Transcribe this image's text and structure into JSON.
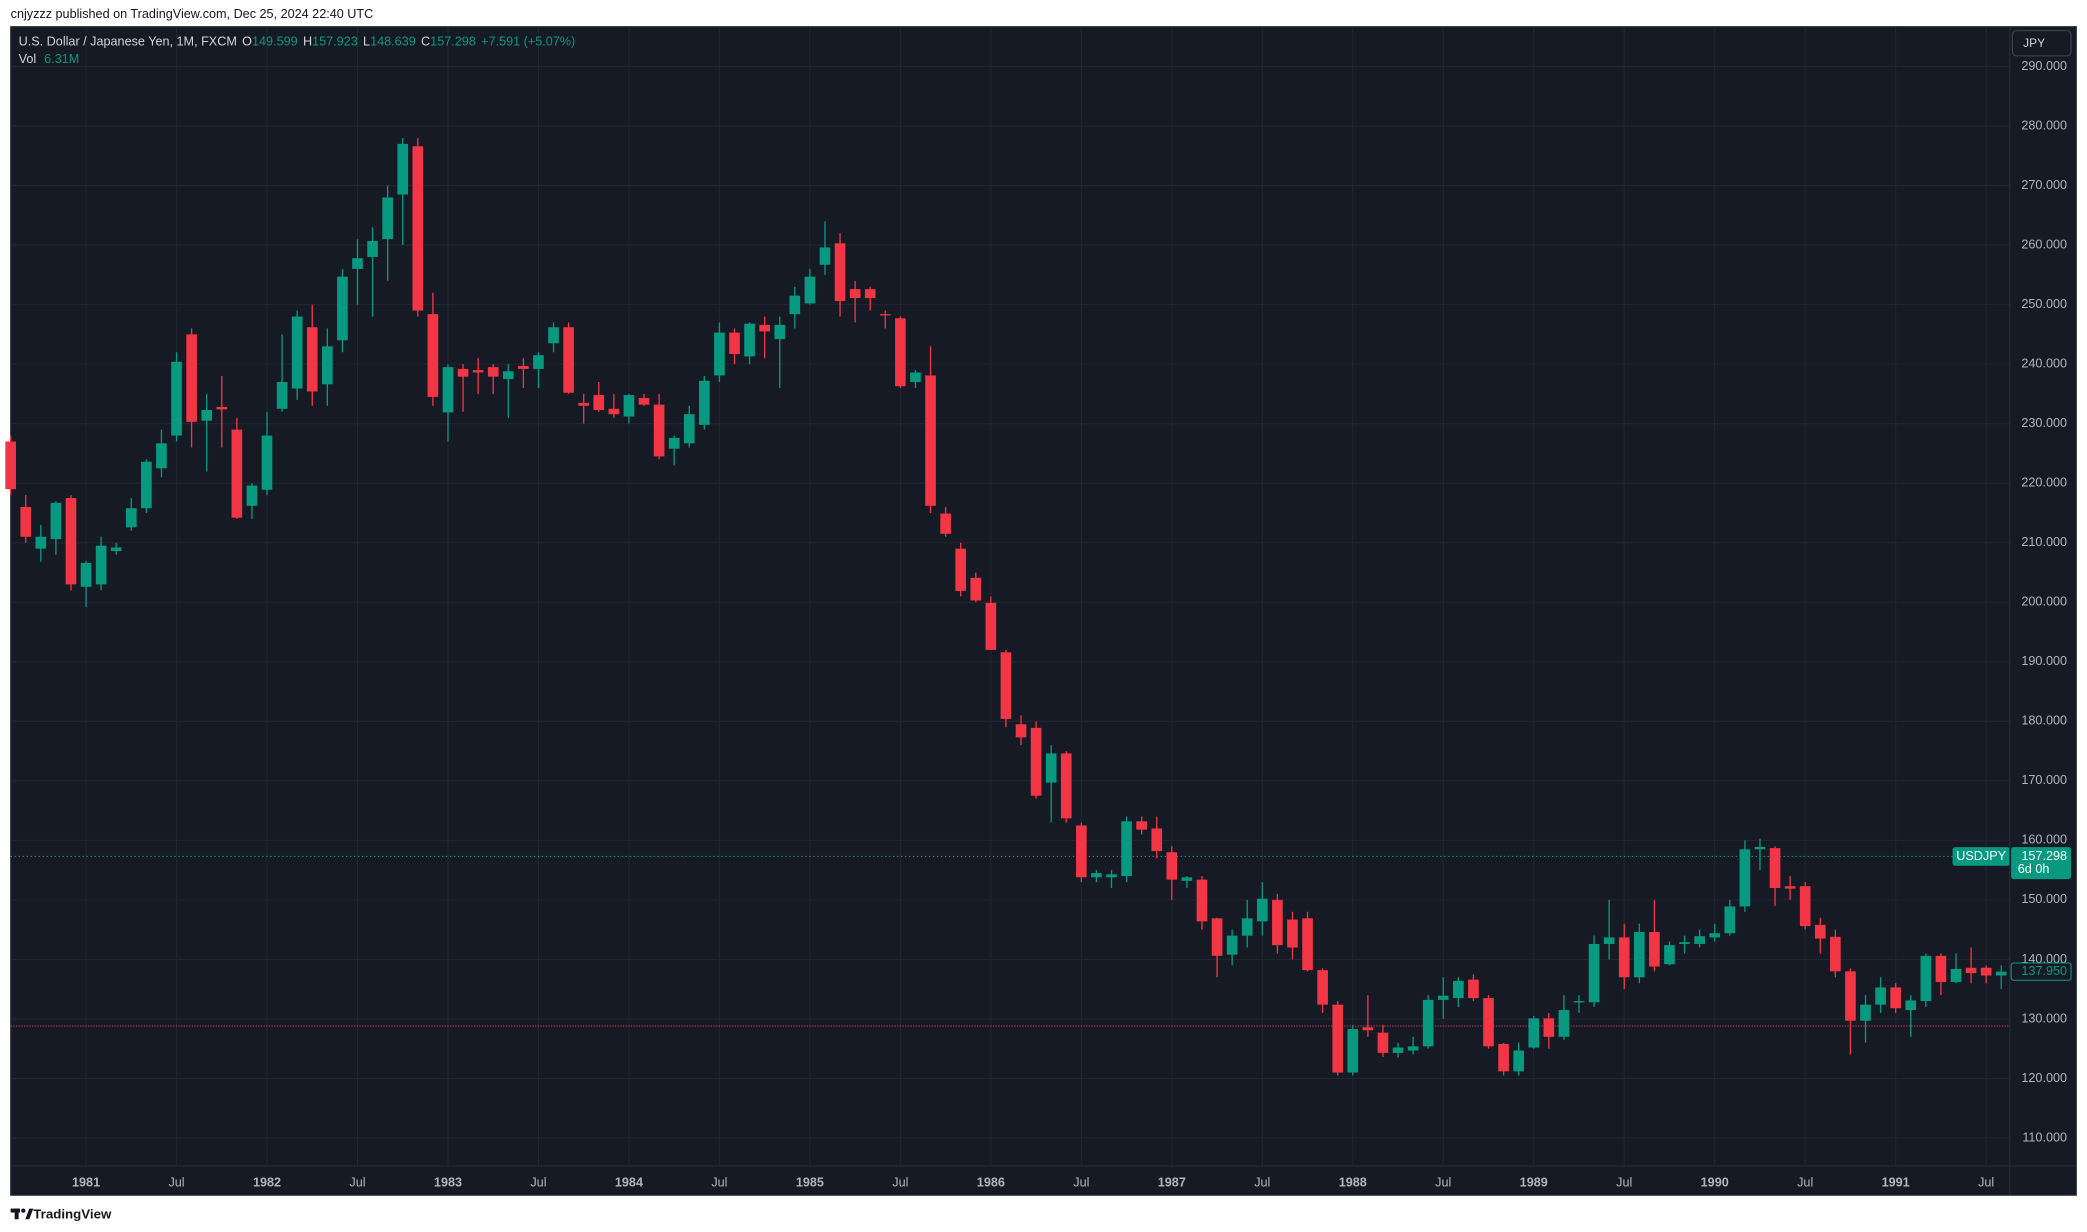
{
  "chart_data": {
    "type": "candlestick",
    "attribution": "cnjyzzz published on TradingView.com, Dec 25, 2024 22:40 UTC",
    "title": "U.S. Dollar / Japanese Yen, 1M, FXCM",
    "ohlc_header": {
      "open_label": "O",
      "open": 149.599,
      "high_label": "H",
      "high": 157.923,
      "low_label": "L",
      "low": 148.639,
      "close_label": "C",
      "close": 157.298,
      "change": "+7.591 (+5.07%)"
    },
    "volume_label": "Vol",
    "volume": "6.31M",
    "currency_button": "JPY",
    "brand": "TradingView",
    "up_color": "#089981",
    "down_color": "#f23645",
    "grid": true,
    "x": [
      "1980-08",
      "1980-09",
      "1980-10",
      "1980-11",
      "1980-12",
      "1981-01",
      "1981-02",
      "1981-03",
      "1981-04",
      "1981-05",
      "1981-06",
      "1981-07",
      "1981-08",
      "1981-09",
      "1981-10",
      "1981-11",
      "1981-12",
      "1982-01",
      "1982-02",
      "1982-03",
      "1982-04",
      "1982-05",
      "1982-06",
      "1982-07",
      "1982-08",
      "1982-09",
      "1982-10",
      "1982-11",
      "1982-12",
      "1983-01",
      "1983-02",
      "1983-03",
      "1983-04",
      "1983-05",
      "1983-06",
      "1983-07",
      "1983-08",
      "1983-09",
      "1983-10",
      "1983-11",
      "1983-12",
      "1984-01",
      "1984-02",
      "1984-03",
      "1984-04",
      "1984-05",
      "1984-06",
      "1984-07",
      "1984-08",
      "1984-09",
      "1984-10",
      "1984-11",
      "1984-12",
      "1985-01",
      "1985-02",
      "1985-03",
      "1985-04",
      "1985-05",
      "1985-06",
      "1985-07",
      "1985-08",
      "1985-09",
      "1985-10",
      "1985-11",
      "1985-12",
      "1986-01",
      "1986-02",
      "1986-03",
      "1986-04",
      "1986-05",
      "1986-06",
      "1986-07",
      "1986-08",
      "1986-09",
      "1986-10",
      "1986-11",
      "1986-12",
      "1987-01",
      "1987-02",
      "1987-03",
      "1987-04",
      "1987-05",
      "1987-06",
      "1987-07",
      "1987-08",
      "1987-09",
      "1987-10",
      "1987-11",
      "1987-12",
      "1988-01",
      "1988-02",
      "1988-03",
      "1988-04",
      "1988-05",
      "1988-06",
      "1988-07",
      "1988-08",
      "1988-09",
      "1988-10",
      "1988-11",
      "1988-12",
      "1989-01",
      "1989-02",
      "1989-03",
      "1989-04",
      "1989-05",
      "1989-06",
      "1989-07",
      "1989-08",
      "1989-09",
      "1989-10",
      "1989-11",
      "1989-12",
      "1990-01",
      "1990-02",
      "1990-03",
      "1990-04",
      "1990-05",
      "1990-06",
      "1990-07",
      "1990-08",
      "1990-09",
      "1990-10",
      "1990-11",
      "1990-12",
      "1991-01",
      "1991-02",
      "1991-03",
      "1991-04",
      "1991-05",
      "1991-06",
      "1991-07",
      "1991-08"
    ],
    "open": [
      227,
      216,
      209,
      210.6,
      217.5,
      202.6,
      203,
      208.6,
      212.6,
      215.8,
      222.5,
      228,
      245,
      230.5,
      232.8,
      229,
      216.2,
      218.9,
      232.5,
      235.9,
      246.2,
      236.6,
      244,
      256,
      258,
      261,
      268.5,
      276.6,
      248.4,
      231.9,
      239.2,
      239,
      239.5,
      237.5,
      239.7,
      239.2,
      243.5,
      246.2,
      233.5,
      234.8,
      232.5,
      231.2,
      234.3,
      233.2,
      225.8,
      226.7,
      229.8,
      238.1,
      245.3,
      241.3,
      246.6,
      244.2,
      248.4,
      250.2,
      256.7,
      260.3,
      252.6,
      252.6,
      248.4,
      247.7,
      237,
      238.1,
      214.9,
      209,
      204.1,
      199.9,
      191.6,
      179.5,
      178.9,
      169.7,
      174.6,
      162.5,
      153.8,
      153.8,
      154,
      163.2,
      162,
      158,
      153.2,
      153.4,
      146.9,
      140.8,
      144,
      146.4,
      150,
      146.7,
      146.9,
      138.2,
      132.4,
      121,
      128.6,
      127.7,
      124.3,
      124.7,
      125.4,
      133.2,
      133.5,
      136.6,
      133.5,
      125.8,
      121.2,
      125.2,
      130.1,
      127,
      132.8,
      132.8,
      142.6,
      143.7,
      137,
      144.6,
      139.2,
      142.6,
      142.6,
      143.7,
      144.4,
      148.9,
      158.5,
      158.7,
      152.3,
      152.3,
      145.8,
      143.8,
      138,
      129.7,
      132.4,
      135.3,
      131.5,
      133,
      140.6,
      136.2,
      138.6,
      138.6,
      137.3
    ],
    "high": [
      228,
      218,
      213,
      217,
      218,
      207,
      211,
      210,
      217.5,
      224,
      229,
      242,
      246,
      235,
      238,
      231,
      220,
      232,
      245,
      249,
      250,
      246,
      256,
      261,
      263,
      270,
      278,
      278,
      252,
      240,
      240,
      241,
      240,
      240,
      241,
      242,
      247,
      247,
      235,
      237,
      235,
      235,
      235,
      235,
      228,
      233,
      238,
      247,
      246,
      247,
      248,
      248,
      253,
      256,
      264,
      262,
      254,
      253,
      249,
      248,
      239,
      243,
      216,
      210,
      205,
      201,
      192,
      181,
      180,
      176,
      175,
      163,
      155,
      155,
      164,
      164,
      164,
      159,
      154,
      154,
      147,
      145,
      150,
      153,
      151,
      148,
      148,
      138.5,
      133,
      129,
      134,
      129,
      126,
      127,
      134,
      137,
      137,
      137.5,
      134,
      126,
      126,
      130.5,
      131,
      134,
      134,
      144,
      150,
      146,
      146,
      150,
      143,
      144,
      145,
      146,
      150,
      160,
      160.3,
      159,
      154,
      153,
      147,
      145,
      138.5,
      134,
      137,
      136,
      134,
      141,
      141,
      141,
      142,
      139,
      139
    ],
    "low": [
      218,
      210,
      206.8,
      208,
      202,
      199.2,
      202,
      208,
      212,
      215,
      221,
      227,
      226,
      222,
      226,
      214,
      214,
      218,
      232,
      234,
      233,
      233,
      242,
      250,
      248,
      254,
      260,
      248,
      233,
      227,
      232,
      235,
      235,
      231,
      236,
      236,
      242,
      235,
      230,
      232,
      231,
      230,
      233,
      224,
      223,
      226,
      229,
      237,
      240,
      240,
      241,
      236,
      246,
      250,
      255,
      248,
      247,
      249,
      246,
      236,
      236,
      215,
      211,
      201,
      200,
      192,
      179,
      176,
      167,
      163,
      163,
      153,
      153,
      152,
      153,
      161,
      157,
      150,
      152,
      145,
      137,
      139,
      142,
      144,
      141,
      140,
      138,
      131,
      120.5,
      120.5,
      127,
      123.6,
      123.5,
      124,
      125,
      130,
      132,
      133,
      125,
      120.5,
      120.5,
      125,
      125,
      126.5,
      131,
      132,
      140,
      135,
      136,
      138,
      139,
      141,
      142,
      143,
      144,
      148,
      155,
      149,
      150,
      145,
      141,
      137,
      124,
      126,
      131,
      131,
      127,
      132,
      134,
      136,
      136,
      136,
      135
    ],
    "close": [
      219,
      211,
      211,
      216.7,
      203,
      206.6,
      209.5,
      209.2,
      215.8,
      223.6,
      226.7,
      240.4,
      230.3,
      232.3,
      232.4,
      214.2,
      219.6,
      228,
      237,
      248,
      235.4,
      243,
      254.7,
      257.8,
      260.7,
      268,
      277,
      249,
      234.5,
      239.5,
      237.9,
      238.6,
      237.9,
      238.8,
      239.2,
      241.5,
      246.2,
      235.2,
      233,
      232.3,
      231.6,
      234.8,
      233.2,
      224.5,
      227.6,
      231.6,
      237.2,
      245.3,
      241.7,
      246.8,
      245.5,
      246.6,
      251.5,
      254.7,
      259.6,
      250.6,
      251.1,
      251.1,
      248.2,
      236.3,
      238.6,
      216.2,
      211.5,
      201.9,
      200.3,
      192,
      180.4,
      177.3,
      167.5,
      174.6,
      163.7,
      153.8,
      154.5,
      154.3,
      163.2,
      161.8,
      158.2,
      153.4,
      153.8,
      146.4,
      140.6,
      144,
      146.9,
      150.2,
      142.4,
      142,
      138.2,
      132.4,
      121,
      128.3,
      128.1,
      124.3,
      125.2,
      125.4,
      133.2,
      133.9,
      136.4,
      133.5,
      125.4,
      121.2,
      124.7,
      130.1,
      127,
      131.5,
      133,
      142.6,
      143.7,
      137,
      144.6,
      138.8,
      142.4,
      142.9,
      143.9,
      144.4,
      148.9,
      158.5,
      158.9,
      152,
      151.9,
      145.6,
      143.5,
      138,
      129.7,
      132.4,
      135.3,
      131.8,
      133.1,
      140.6,
      136.2,
      138.4,
      137.7,
      137.3,
      137.95
    ],
    "ylim": [
      105.3,
      296.7
    ],
    "yticks": [
      {
        "value": 110,
        "label": "110.000"
      },
      {
        "value": 120,
        "label": "120.000"
      },
      {
        "value": 130,
        "label": "130.000"
      },
      {
        "value": 140,
        "label": "140.000"
      },
      {
        "value": 150,
        "label": "150.000"
      },
      {
        "value": 160,
        "label": "160.000"
      },
      {
        "value": 170,
        "label": "170.000"
      },
      {
        "value": 180,
        "label": "180.000"
      },
      {
        "value": 190,
        "label": "190.000"
      },
      {
        "value": 200,
        "label": "200.000"
      },
      {
        "value": 210,
        "label": "210.000"
      },
      {
        "value": 220,
        "label": "220.000"
      },
      {
        "value": 230,
        "label": "230.000"
      },
      {
        "value": 240,
        "label": "240.000"
      },
      {
        "value": 250,
        "label": "250.000"
      },
      {
        "value": 260,
        "label": "260.000"
      },
      {
        "value": 270,
        "label": "270.000"
      },
      {
        "value": 280,
        "label": "280.000"
      },
      {
        "value": 290,
        "label": "290.000"
      }
    ],
    "xticks": [
      {
        "value": "1981-01",
        "label": "1981"
      },
      {
        "value": "1981-07",
        "label": "Jul"
      },
      {
        "value": "1982-01",
        "label": "1982"
      },
      {
        "value": "1982-07",
        "label": "Jul"
      },
      {
        "value": "1983-01",
        "label": "1983"
      },
      {
        "value": "1983-07",
        "label": "Jul"
      },
      {
        "value": "1984-01",
        "label": "1984"
      },
      {
        "value": "1984-07",
        "label": "Jul"
      },
      {
        "value": "1985-01",
        "label": "1985"
      },
      {
        "value": "1985-07",
        "label": "Jul"
      },
      {
        "value": "1986-01",
        "label": "1986"
      },
      {
        "value": "1986-07",
        "label": "Jul"
      },
      {
        "value": "1987-01",
        "label": "1987"
      },
      {
        "value": "1987-07",
        "label": "Jul"
      },
      {
        "value": "1988-01",
        "label": "1988"
      },
      {
        "value": "1988-07",
        "label": "Jul"
      },
      {
        "value": "1989-01",
        "label": "1989"
      },
      {
        "value": "1989-07",
        "label": "Jul"
      },
      {
        "value": "1990-01",
        "label": "1990"
      },
      {
        "value": "1990-07",
        "label": "Jul"
      },
      {
        "value": "1991-01",
        "label": "1991"
      },
      {
        "value": "1991-07",
        "label": "Jul"
      }
    ],
    "last_price_tag": {
      "symbol": "USDJPY",
      "price": 157.298,
      "countdown": "6d 0h"
    },
    "chart_price_tag": {
      "value": 137.95,
      "label": "137.950"
    },
    "reference_line": 128.8
  }
}
